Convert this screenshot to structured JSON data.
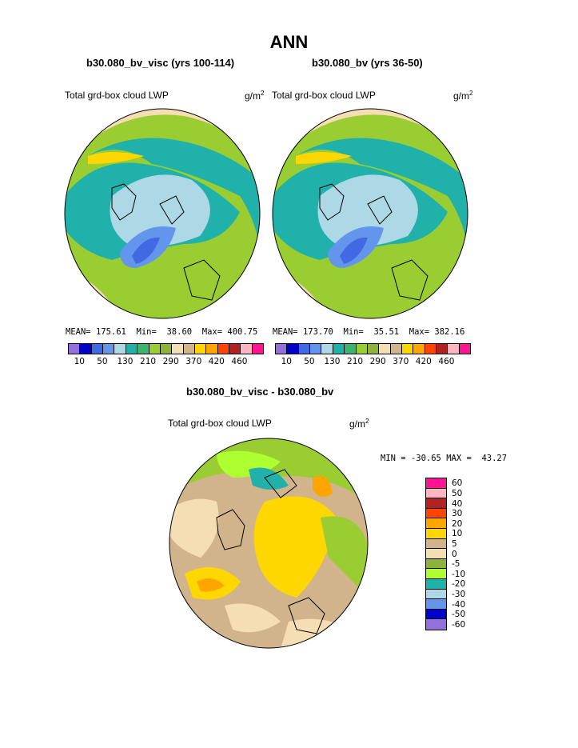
{
  "page_title": "ANN",
  "panel_left": {
    "case_title": "b30.080_bv_visc (yrs 100-114)",
    "variable": "Total grd-box cloud LWP",
    "unit_base": "g/m",
    "unit_exp": "2",
    "mean_label": "MEAN=",
    "mean": "175.61",
    "min_label": "Min=",
    "min": "38.60",
    "max_label": "Max=",
    "max": "400.75"
  },
  "panel_right": {
    "case_title": "b30.080_bv (yrs 36-50)",
    "variable": "Total grd-box cloud LWP",
    "unit_base": "g/m",
    "unit_exp": "2",
    "mean_label": "MEAN=",
    "mean": "173.70",
    "min_label": "Min=",
    "min": "35.51",
    "max_label": "Max=",
    "max": "382.16"
  },
  "panel_diff": {
    "case_title": "b30.080_bv_visc - b30.080_bv",
    "variable": "Total grd-box cloud LWP",
    "unit_base": "g/m",
    "unit_exp": "2",
    "min_label": "MIN =",
    "min": "-30.65",
    "max_label": "MAX =",
    "max": "43.27"
  },
  "abs_colorbar": {
    "colors": [
      "#9370db",
      "#0000cd",
      "#4169e1",
      "#6495ed",
      "#add8e6",
      "#20b2aa",
      "#3cb371",
      "#9acd32",
      "#8db33a",
      "#f5deb3",
      "#d2b48c",
      "#ffd700",
      "#ffa500",
      "#ff4500",
      "#b22222",
      "#ffb6c1",
      "#ff1493"
    ],
    "tick_labels": [
      "10",
      "50",
      "130",
      "210",
      "290",
      "370",
      "420",
      "460"
    ]
  },
  "diff_colorbar": {
    "colors": [
      "#ff1493",
      "#ffb6c1",
      "#b22222",
      "#ff4500",
      "#ffa500",
      "#ffd700",
      "#d2b48c",
      "#f5deb3",
      "#8db33a",
      "#adff2f",
      "#20b2aa",
      "#add8e6",
      "#6495ed",
      "#0000cd",
      "#9370db"
    ],
    "tick_labels": [
      "60",
      "50",
      "40",
      "30",
      "20",
      "10",
      "5",
      "0",
      "-5",
      "-10",
      "-20",
      "-30",
      "-40",
      "-50",
      "-60"
    ]
  },
  "colors": {
    "ocean_green": "#9acd32",
    "arctic_light_blue": "#add8e6",
    "teal": "#20b2aa",
    "wheat": "#f5deb3",
    "tan": "#d2b48c",
    "gold": "#ffd700",
    "blue": "#6495ed",
    "lime": "#adff2f"
  }
}
